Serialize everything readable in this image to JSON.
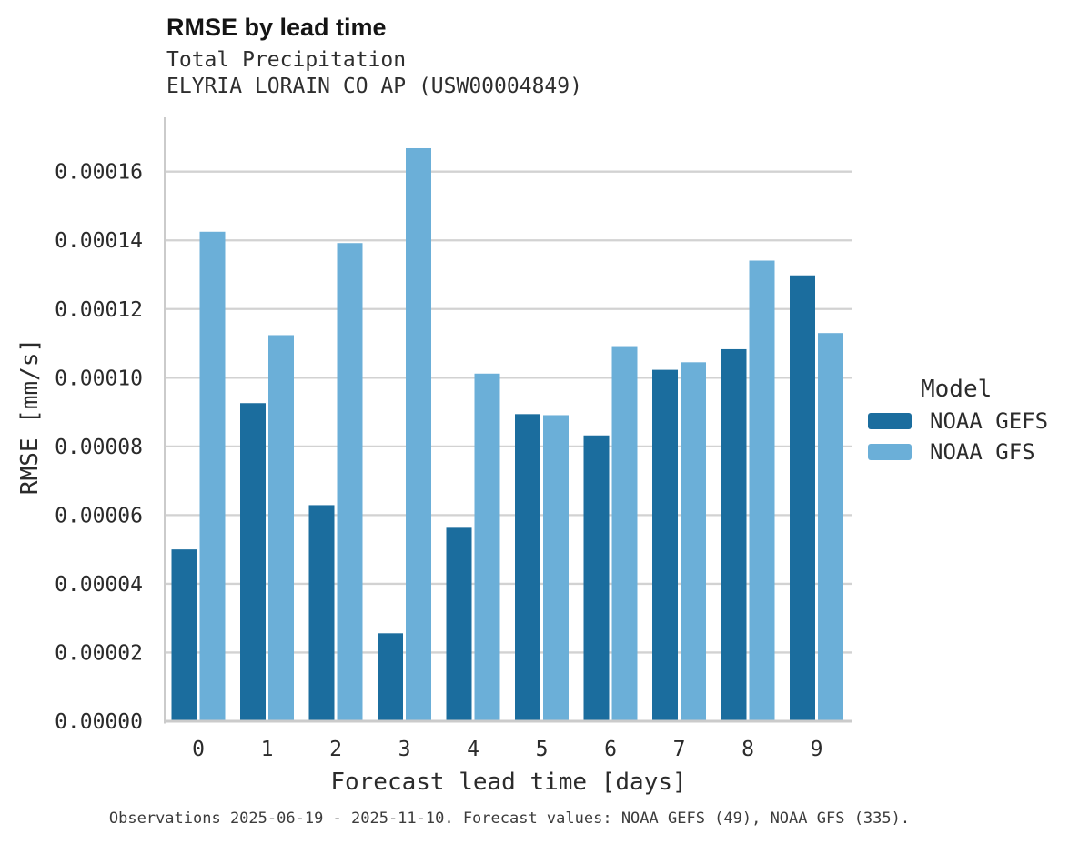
{
  "header": {
    "title": "RMSE by lead time",
    "subtitle1": "Total Precipitation",
    "subtitle2": "ELYRIA LORAIN CO AP (USW00004849)"
  },
  "axes": {
    "xlabel": "Forecast lead time [days]",
    "ylabel": "RMSE [mm/s]"
  },
  "legend": {
    "title": "Model",
    "entries": [
      {
        "label": "NOAA GEFS",
        "color": "#1b6d9e"
      },
      {
        "label": "NOAA GFS",
        "color": "#6bafd8"
      }
    ]
  },
  "footnote": "Observations 2025-06-19 - 2025-11-10. Forecast values: NOAA GEFS (49), NOAA GFS (335).",
  "colors": {
    "grid": "#d2d2d2",
    "spine": "#cbcbcb",
    "tick_text": "#2b2b2b"
  },
  "chart_data": {
    "type": "bar",
    "title": "RMSE by lead time",
    "subtitle": [
      "Total Precipitation",
      "ELYRIA LORAIN CO AP (USW00004849)"
    ],
    "xlabel": "Forecast lead time [days]",
    "ylabel": "RMSE [mm/s]",
    "categories": [
      "0",
      "1",
      "2",
      "3",
      "4",
      "5",
      "6",
      "7",
      "8",
      "9"
    ],
    "series": [
      {
        "name": "NOAA GEFS",
        "color": "#1b6d9e",
        "values": [
          5e-05,
          9.26e-05,
          6.29e-05,
          2.56e-05,
          5.63e-05,
          8.94e-05,
          8.32e-05,
          0.0001023,
          0.0001083,
          0.0001298
        ]
      },
      {
        "name": "NOAA GFS",
        "color": "#6bafd8",
        "values": [
          0.0001425,
          0.0001124,
          0.0001392,
          0.0001668,
          0.0001012,
          8.91e-05,
          0.0001092,
          0.0001045,
          0.0001341,
          0.000113
        ]
      }
    ],
    "ylim": [
      0,
      0.0001758
    ],
    "yticks": [
      0.0,
      2e-05,
      4e-05,
      6e-05,
      8e-05,
      0.0001,
      0.00012,
      0.00014,
      0.00016
    ],
    "ytick_labels": [
      "0.00000",
      "0.00002",
      "0.00004",
      "0.00006",
      "0.00008",
      "0.00010",
      "0.00012",
      "0.00014",
      "0.00016"
    ],
    "grid": "horizontal",
    "legend_title": "Model",
    "legend_position": "right",
    "annotation": "Observations 2025-06-19 - 2025-11-10. Forecast values: NOAA GEFS (49), NOAA GFS (335)."
  }
}
